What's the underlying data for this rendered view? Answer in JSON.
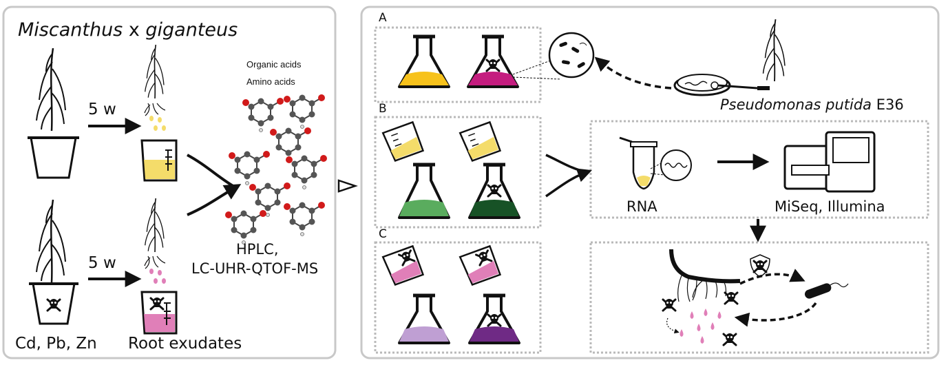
{
  "left_panel": {
    "title_part1": "Miscanthus",
    "title_part2": " x ",
    "title_part3": "giganteus",
    "arrow_label_top": "5 w",
    "arrow_label_bottom": "5 w",
    "metals_label": "Cd, Pb, Zn",
    "exudates_label": "Root exudates",
    "compound_label_1": "Organic acids",
    "compound_label_2": "Amino acids",
    "method_line1": "HPLC,",
    "method_line2": "LC-UHR-QTOF-MS"
  },
  "right_panel": {
    "panel_a": "A",
    "panel_b": "B",
    "panel_c": "C",
    "species_name": "Pseudomonas putida",
    "strain": " E36",
    "rna_label": "RNA",
    "sequencer_label": "MiSeq, Illumina"
  },
  "colors": {
    "frame": "#c8c8c8",
    "dotted": "#b9b9b9",
    "flask_a_control": "#f7c21c",
    "flask_a_toxic": "#c41d7f",
    "flask_b_control": "#5aac5e",
    "flask_b_toxic": "#175226",
    "flask_c_control": "#bf9fd3",
    "flask_c_toxic": "#6f2a85",
    "exudate_yellow": "#f4dc6a",
    "exudate_pink": "#e07fb8"
  },
  "icons": [
    "plant-icon",
    "pot-icon",
    "skull-icon",
    "beaker-icon",
    "flask-icon",
    "molecule-icon",
    "petri-dish-icon",
    "tube-icon",
    "sequencer-icon",
    "bacterium-icon",
    "shield-icon",
    "root-icon"
  ]
}
